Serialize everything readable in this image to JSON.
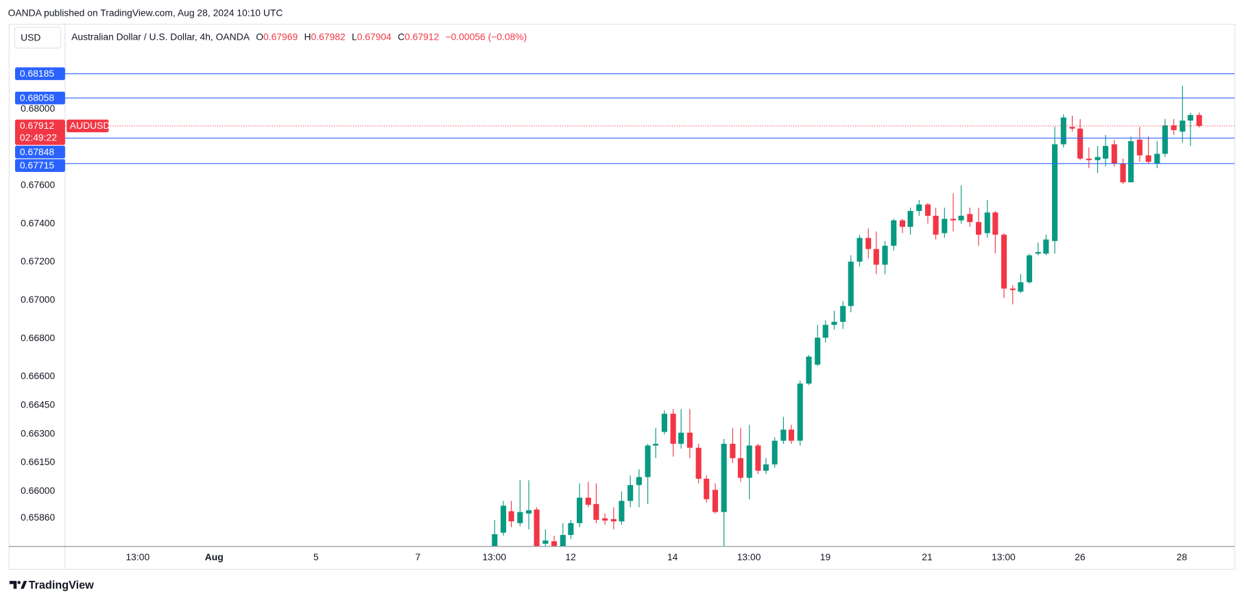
{
  "header": "OANDA published on TradingView.com, Aug 28, 2024 10:10 UTC",
  "footer": "TradingView",
  "chart_data": {
    "type": "candlestick",
    "currency": "USD",
    "title": "Australian Dollar / U.S. Dollar, 4h, OANDA",
    "ohlc_labels": [
      "O",
      "H",
      "L",
      "C"
    ],
    "change": "−0.00056 (−0.08%)",
    "symbol": "AUDUSD",
    "countdown": "02:49:22",
    "open": [
      0.65693,
      0.65784,
      0.65896,
      0.65834,
      0.65884,
      0.65905,
      0.65726,
      0.65739,
      0.6571,
      0.65772,
      0.65834,
      0.65967,
      0.65934,
      0.65859,
      0.65855,
      0.65843,
      0.6595,
      0.66033,
      0.66075,
      0.6624,
      0.66311,
      0.66406,
      0.66249,
      0.66307,
      0.66228,
      0.66066,
      0.66008,
      0.65892,
      0.66249,
      0.66174,
      0.66071,
      0.6624,
      0.66108,
      0.66141,
      0.66265,
      0.66323,
      0.66265,
      0.66564,
      0.66663,
      0.66804,
      0.66871,
      0.66887,
      0.6697,
      0.67202,
      0.67326,
      0.67268,
      0.67186,
      0.67285,
      0.67418,
      0.67384,
      0.67467,
      0.67501,
      0.67442,
      0.67351,
      0.67426,
      0.67418,
      0.67451,
      0.67409,
      0.67351,
      0.67459,
      0.67343,
      0.67061,
      0.67045,
      0.67094,
      0.67244,
      0.67244,
      0.6731,
      0.67816,
      0.67907,
      0.67898,
      0.67741,
      0.67733,
      0.67741,
      0.67816,
      0.67716,
      0.67617,
      0.6784,
      0.67758,
      0.67716,
      0.67766,
      0.67915,
      0.67882,
      0.6794,
      0.67969
    ],
    "high": [
      0.65851,
      0.6595,
      0.6595,
      0.66058,
      0.66058,
      0.65917,
      0.65801,
      0.65768,
      0.65834,
      0.65851,
      0.66042,
      0.6605,
      0.66042,
      0.65884,
      0.65917,
      0.66,
      0.66083,
      0.66116,
      0.66249,
      0.66332,
      0.66423,
      0.66431,
      0.66431,
      0.66431,
      0.66249,
      0.66083,
      0.66042,
      0.66274,
      0.66332,
      0.66332,
      0.66348,
      0.66249,
      0.66174,
      0.66282,
      0.6639,
      0.66348,
      0.6658,
      0.66713,
      0.66871,
      0.66895,
      0.66945,
      0.66995,
      0.67235,
      0.67343,
      0.67376,
      0.6736,
      0.6731,
      0.67426,
      0.67426,
      0.67484,
      0.67525,
      0.67509,
      0.67484,
      0.67484,
      0.67559,
      0.676,
      0.67484,
      0.67484,
      0.67525,
      0.67467,
      0.67351,
      0.67078,
      0.67136,
      0.67244,
      0.67302,
      0.67343,
      0.67907,
      0.67973,
      0.67965,
      0.67948,
      0.67799,
      0.67807,
      0.67865,
      0.6784,
      0.67741,
      0.67857,
      0.67907,
      0.67857,
      0.67832,
      0.67948,
      0.67948,
      0.68122,
      0.67981,
      0.67982
    ],
    "low": [
      0.65668,
      0.65768,
      0.65813,
      0.65818,
      0.65801,
      0.65702,
      0.6571,
      0.65702,
      0.65693,
      0.65751,
      0.65813,
      0.65917,
      0.65834,
      0.65826,
      0.65801,
      0.65826,
      0.65917,
      0.65917,
      0.65934,
      0.66174,
      0.66298,
      0.66182,
      0.66224,
      0.66174,
      0.66042,
      0.65942,
      0.65884,
      0.6571,
      0.66149,
      0.6605,
      0.65959,
      0.66091,
      0.66091,
      0.66124,
      0.66249,
      0.66249,
      0.6624,
      0.66556,
      0.66655,
      0.66779,
      0.66846,
      0.6685,
      0.66937,
      0.67177,
      0.67219,
      0.67136,
      0.67136,
      0.6726,
      0.67351,
      0.67343,
      0.67442,
      0.67401,
      0.67318,
      0.67326,
      0.6736,
      0.67401,
      0.67384,
      0.67285,
      0.67326,
      0.67244,
      0.67011,
      0.66978,
      0.67036,
      0.67086,
      0.67235,
      0.67235,
      0.67244,
      0.67799,
      0.67882,
      0.67733,
      0.67691,
      0.67666,
      0.677,
      0.677,
      0.67608,
      0.67617,
      0.67724,
      0.67716,
      0.67691,
      0.67749,
      0.67865,
      0.67824,
      0.67807,
      0.67904
    ],
    "close": [
      0.65776,
      0.65925,
      0.65843,
      0.65892,
      0.65901,
      0.6571,
      0.65743,
      0.6571,
      0.65772,
      0.65834,
      0.65967,
      0.6593,
      0.65851,
      0.65847,
      0.65843,
      0.6595,
      0.66033,
      0.66075,
      0.6624,
      0.66249,
      0.66406,
      0.66249,
      0.66307,
      0.66228,
      0.66066,
      0.65959,
      0.65892,
      0.66249,
      0.66174,
      0.66071,
      0.6624,
      0.66108,
      0.66141,
      0.66265,
      0.66323,
      0.66265,
      0.66564,
      0.66705,
      0.66804,
      0.66871,
      0.66887,
      0.6697,
      0.67202,
      0.67326,
      0.67268,
      0.67186,
      0.67285,
      0.67418,
      0.67384,
      0.67467,
      0.67501,
      0.67442,
      0.67343,
      0.67426,
      0.67418,
      0.67442,
      0.67409,
      0.67343,
      0.67459,
      0.67343,
      0.67061,
      0.67053,
      0.67094,
      0.67235,
      0.67252,
      0.67318,
      0.67816,
      0.67956,
      0.67898,
      0.67741,
      0.67733,
      0.67749,
      0.67807,
      0.67716,
      0.67617,
      0.67832,
      0.67758,
      0.67724,
      0.67766,
      0.67915,
      0.6789,
      0.6794,
      0.67969,
      0.67912
    ],
    "up_color": "#089981",
    "down_color": "#f23645",
    "ylim": [
      0.65714,
      0.68446
    ],
    "yticks": [
      {
        "value": 0.68,
        "label": "0.68000"
      },
      {
        "value": 0.676,
        "label": "0.67600"
      },
      {
        "value": 0.674,
        "label": "0.67400"
      },
      {
        "value": 0.672,
        "label": "0.67200"
      },
      {
        "value": 0.67,
        "label": "0.67000"
      },
      {
        "value": 0.668,
        "label": "0.66800"
      },
      {
        "value": 0.666,
        "label": "0.66600"
      },
      {
        "value": 0.6645,
        "label": "0.66450"
      },
      {
        "value": 0.663,
        "label": "0.66300"
      },
      {
        "value": 0.6615,
        "label": "0.66150"
      },
      {
        "value": 0.66,
        "label": "0.66000"
      },
      {
        "value": 0.6586,
        "label": "0.65860"
      }
    ],
    "xlim": [
      -50.56,
      87.2
    ],
    "xticks": [
      {
        "value": -42,
        "label": "13:00"
      },
      {
        "value": -33,
        "label": "Aug"
      },
      {
        "value": -21,
        "label": "5"
      },
      {
        "value": -9,
        "label": "7"
      },
      {
        "value": 0,
        "label": "13:00"
      },
      {
        "value": 9,
        "label": "12"
      },
      {
        "value": 21,
        "label": "14"
      },
      {
        "value": 30,
        "label": "13:00"
      },
      {
        "value": 39,
        "label": "19"
      },
      {
        "value": 51,
        "label": "21"
      },
      {
        "value": 60,
        "label": "13:00"
      },
      {
        "value": 69,
        "label": "26"
      },
      {
        "value": 81,
        "label": "28"
      }
    ],
    "levels": [
      0.68185,
      0.68058,
      0.67848,
      0.67715
    ],
    "level_color": "#2962ff"
  }
}
